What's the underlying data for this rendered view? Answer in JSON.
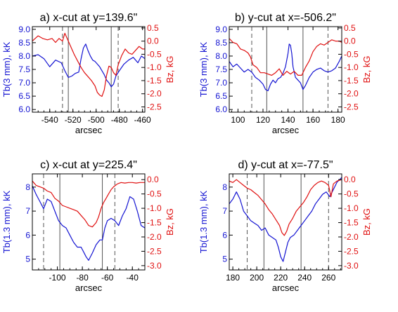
{
  "colors": {
    "tb": "#1414d2",
    "bz": "#e01010",
    "axis": "#000000",
    "guide": "#555555"
  },
  "chart_data": [
    {
      "type": "line",
      "title": "a) x-cut at y=139.6\"",
      "xlabel": "arcsec",
      "ylabel_left": "Tb(3 mm), kK",
      "ylabel_right": "Bz, kG",
      "xlim": [
        -555,
        -458
      ],
      "ylim_left": [
        5.9,
        9.1
      ],
      "ylim_right": [
        -2.7,
        0.55
      ],
      "xticks": [
        -540,
        -520,
        -500,
        -480,
        -460
      ],
      "yticks_left": [
        6.0,
        6.5,
        7.0,
        7.5,
        8.0,
        8.5,
        9.0
      ],
      "yticks_right": [
        0.5,
        0.0,
        -0.5,
        -1.0,
        -1.5,
        -2.0,
        -2.5
      ],
      "vlines_solid": [
        -524,
        -487
      ],
      "vlines_dashed": [
        -529,
        -481
      ],
      "series": [
        {
          "axis": "left",
          "color": "tb",
          "x": [
            -555,
            -550,
            -545,
            -540,
            -535,
            -530,
            -527,
            -524,
            -521,
            -518,
            -515,
            -513,
            -511,
            -509,
            -507,
            -505,
            -503,
            -501,
            -499,
            -497,
            -495,
            -493,
            -491,
            -489,
            -487,
            -485,
            -483,
            -480,
            -476,
            -472,
            -468,
            -464,
            -461,
            -458
          ],
          "y": [
            8.0,
            8.05,
            7.9,
            7.6,
            7.85,
            7.75,
            7.45,
            7.2,
            7.25,
            7.35,
            7.4,
            7.9,
            8.3,
            8.45,
            8.2,
            8.0,
            7.85,
            7.8,
            7.7,
            7.6,
            7.45,
            7.3,
            7.1,
            7.0,
            6.85,
            6.95,
            7.25,
            7.45,
            7.7,
            7.85,
            7.95,
            7.75,
            8.0,
            7.9
          ]
        },
        {
          "axis": "right",
          "color": "bz",
          "x": [
            -555,
            -550,
            -546,
            -542,
            -538,
            -535,
            -532,
            -529,
            -527,
            -525,
            -523,
            -521,
            -519,
            -516,
            -513,
            -510,
            -507,
            -504,
            -501,
            -499,
            -497,
            -495,
            -493,
            -491,
            -489,
            -487,
            -485,
            -483,
            -481,
            -478,
            -475,
            -472,
            -469,
            -466,
            -463,
            -460,
            -458
          ],
          "y": [
            0.0,
            0.2,
            0.1,
            0.05,
            0.1,
            -0.05,
            0.1,
            0.0,
            0.3,
            0.1,
            -0.1,
            -0.3,
            -0.5,
            -0.75,
            -1.0,
            -1.2,
            -1.35,
            -1.5,
            -1.7,
            -1.95,
            -2.05,
            -2.1,
            -1.85,
            -1.3,
            -0.95,
            -1.0,
            -1.2,
            -1.3,
            -0.9,
            -0.55,
            -0.3,
            -0.45,
            -0.5,
            -0.35,
            -0.2,
            -0.3,
            -0.3
          ]
        }
      ]
    },
    {
      "type": "line",
      "title": "b) y-cut at x=-506.2\"",
      "xlabel": "arcsec",
      "ylabel_left": "Tb(3 mm), kK",
      "ylabel_right": "Bz, kG",
      "xlim": [
        93,
        183
      ],
      "ylim_left": [
        5.9,
        9.1
      ],
      "ylim_right": [
        -2.7,
        0.55
      ],
      "xticks": [
        100,
        120,
        140,
        160,
        180
      ],
      "yticks_left": [
        6.0,
        6.5,
        7.0,
        7.5,
        8.0,
        8.5,
        9.0
      ],
      "yticks_right": [
        0.5,
        0.0,
        -0.5,
        -1.0,
        -1.5,
        -2.0,
        -2.5
      ],
      "vlines_solid": [
        123,
        152
      ],
      "vlines_dashed": [
        111,
        172
      ],
      "series": [
        {
          "axis": "left",
          "color": "tb",
          "x": [
            93,
            96,
            99,
            102,
            105,
            108,
            111,
            114,
            117,
            120,
            122,
            124,
            126,
            128,
            130,
            132,
            134,
            136,
            138,
            140,
            141,
            142,
            143,
            144,
            146,
            148,
            150,
            152,
            154,
            157,
            160,
            163,
            166,
            169,
            172,
            175,
            178,
            181,
            183
          ],
          "y": [
            7.8,
            7.6,
            7.7,
            7.55,
            7.4,
            7.5,
            7.4,
            7.2,
            7.1,
            6.95,
            6.75,
            6.7,
            6.95,
            7.1,
            7.0,
            7.15,
            7.2,
            7.35,
            7.6,
            8.1,
            8.45,
            8.4,
            8.1,
            7.6,
            7.2,
            7.1,
            7.0,
            6.75,
            6.9,
            7.2,
            7.4,
            7.5,
            7.55,
            7.45,
            7.4,
            7.45,
            7.55,
            7.8,
            8.0
          ]
        },
        {
          "axis": "right",
          "color": "bz",
          "x": [
            93,
            96,
            99,
            102,
            105,
            108,
            110,
            112,
            115,
            118,
            121,
            124,
            127,
            130,
            133,
            136,
            139,
            142,
            145,
            148,
            151,
            154,
            157,
            160,
            163,
            166,
            169,
            172,
            175,
            178,
            181,
            183
          ],
          "y": [
            0.1,
            -0.05,
            -0.1,
            -0.3,
            -0.35,
            -0.45,
            -0.6,
            -0.9,
            -1.0,
            -1.2,
            -1.2,
            -1.25,
            -1.3,
            -1.2,
            -1.05,
            -1.3,
            -1.15,
            -1.25,
            -1.15,
            -1.3,
            -1.3,
            -1.0,
            -0.75,
            -0.4,
            -0.2,
            -0.1,
            -0.15,
            -0.05,
            0.05,
            0.0,
            0.0,
            -0.05
          ]
        }
      ]
    },
    {
      "type": "line",
      "title": "c) x-cut at y=225.4\"",
      "xlabel": "arcsec",
      "ylabel_left": "Tb(1.3 mm), kK",
      "ylabel_right": "Bz, kG",
      "xlim": [
        -120,
        -30
      ],
      "ylim_left": [
        4.55,
        8.55
      ],
      "ylim_right": [
        -3.15,
        0.2
      ],
      "xticks": [
        -100,
        -80,
        -60,
        -40
      ],
      "yticks_left": [
        5,
        6,
        7,
        8
      ],
      "yticks_right": [
        0.0,
        -0.5,
        -1.0,
        -1.5,
        -2.0,
        -2.5,
        -3.0
      ],
      "vlines_solid": [
        -98,
        -64
      ],
      "vlines_dashed": [
        -111,
        -54
      ],
      "series": [
        {
          "axis": "left",
          "color": "tb",
          "x": [
            -120,
            -117,
            -114,
            -111,
            -108,
            -105,
            -102,
            -99,
            -96,
            -93,
            -90,
            -87,
            -84,
            -81,
            -79,
            -77,
            -75,
            -72,
            -69,
            -66,
            -64,
            -62,
            -60,
            -57,
            -54,
            -51,
            -48,
            -45,
            -42,
            -39,
            -36,
            -33,
            -30
          ],
          "y": [
            8.05,
            7.7,
            7.4,
            7.1,
            7.5,
            7.4,
            7.0,
            6.6,
            6.4,
            6.3,
            6.0,
            5.7,
            5.5,
            5.5,
            5.3,
            5.1,
            4.95,
            5.25,
            5.6,
            5.8,
            5.8,
            6.3,
            6.6,
            6.7,
            6.6,
            6.4,
            6.8,
            7.1,
            7.6,
            7.5,
            7.0,
            6.4,
            6.3
          ]
        },
        {
          "axis": "right",
          "color": "bz",
          "x": [
            -120,
            -117,
            -114,
            -111,
            -108,
            -105,
            -102,
            -99,
            -96,
            -93,
            -90,
            -87,
            -84,
            -81,
            -78,
            -75,
            -72,
            -69,
            -67,
            -65,
            -63,
            -61,
            -59,
            -57,
            -55,
            -52,
            -49,
            -46,
            -43,
            -40,
            -37,
            -34,
            -31,
            -30
          ],
          "y": [
            -0.05,
            -0.2,
            -0.25,
            -0.3,
            -0.4,
            -0.45,
            -0.65,
            -0.75,
            -0.9,
            -0.95,
            -1.0,
            -1.05,
            -1.1,
            -1.25,
            -1.4,
            -1.6,
            -1.65,
            -1.5,
            -1.3,
            -1.0,
            -0.8,
            -0.65,
            -0.5,
            -0.35,
            -0.25,
            -0.15,
            -0.1,
            -0.12,
            -0.1,
            -0.1,
            -0.12,
            -0.1,
            -0.1,
            -0.1
          ]
        }
      ]
    },
    {
      "type": "line",
      "title": "d) y-cut at x=-77.5\"",
      "xlabel": "arcsec",
      "ylabel_left": "Tb(1.3 mm), kK",
      "ylabel_right": "Bz, kG",
      "xlim": [
        177,
        271
      ],
      "ylim_left": [
        4.55,
        8.55
      ],
      "ylim_right": [
        -3.15,
        0.2
      ],
      "xticks": [
        180,
        200,
        220,
        240,
        260
      ],
      "yticks_left": [
        5,
        6,
        7,
        8
      ],
      "yticks_right": [
        0.0,
        -0.5,
        -1.0,
        -1.5,
        -2.0,
        -2.5,
        -3.0
      ],
      "vlines_solid": [
        206,
        237
      ],
      "vlines_dashed": [
        192,
        260
      ],
      "series": [
        {
          "axis": "left",
          "color": "tb",
          "x": [
            177,
            180,
            183,
            186,
            189,
            192,
            195,
            198,
            201,
            204,
            207,
            210,
            213,
            216,
            218,
            220,
            222,
            224,
            226,
            228,
            231,
            234,
            237,
            240,
            243,
            246,
            249,
            252,
            255,
            258,
            261,
            264,
            267,
            271
          ],
          "y": [
            7.3,
            7.5,
            7.8,
            7.5,
            7.0,
            6.8,
            6.6,
            6.5,
            6.4,
            6.2,
            6.3,
            6.0,
            5.9,
            5.8,
            5.5,
            5.1,
            4.9,
            5.3,
            5.7,
            5.9,
            6.0,
            6.2,
            6.4,
            6.6,
            6.8,
            7.0,
            7.3,
            7.5,
            7.7,
            7.8,
            7.6,
            7.9,
            8.2,
            8.4
          ]
        },
        {
          "axis": "right",
          "color": "bz",
          "x": [
            177,
            180,
            183,
            186,
            189,
            192,
            195,
            198,
            201,
            204,
            207,
            210,
            213,
            216,
            219,
            221,
            223,
            225,
            227,
            230,
            233,
            236,
            239,
            242,
            245,
            248,
            251,
            254,
            257,
            260,
            262,
            264,
            267,
            271
          ],
          "y": [
            -0.05,
            -0.1,
            0.0,
            -0.1,
            -0.2,
            -0.3,
            -0.35,
            -0.45,
            -0.55,
            -0.7,
            -0.85,
            -1.05,
            -1.2,
            -1.4,
            -1.6,
            -1.85,
            -1.95,
            -1.8,
            -1.55,
            -1.35,
            -1.1,
            -0.95,
            -0.8,
            -0.6,
            -0.35,
            -0.2,
            -0.1,
            -0.05,
            -0.1,
            -0.2,
            -0.6,
            -0.15,
            -0.05,
            0.0
          ]
        }
      ]
    }
  ]
}
